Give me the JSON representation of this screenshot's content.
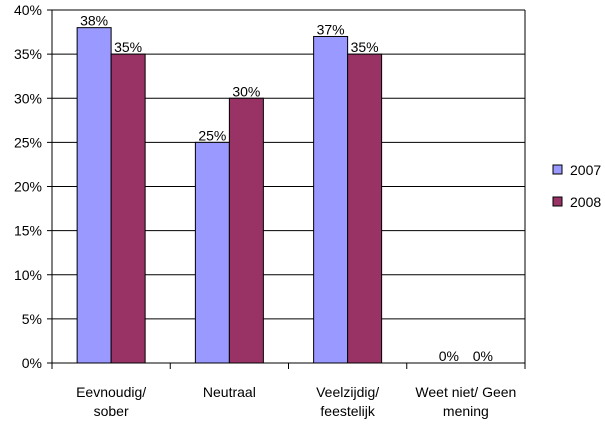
{
  "chart_data": {
    "type": "bar",
    "title": "",
    "xlabel": "",
    "ylabel": "",
    "categories": [
      [
        "Eevnoudig/",
        "sober"
      ],
      [
        "Neutraal"
      ],
      [
        "Veelzijdig/",
        "feestelijk"
      ],
      [
        "Weet niet/ Geen",
        "mening"
      ]
    ],
    "series": [
      {
        "name": "2007",
        "color": "#9999ff",
        "values": [
          38,
          25,
          37,
          0
        ]
      },
      {
        "name": "2008",
        "color": "#993366",
        "values": [
          35,
          30,
          35,
          0
        ]
      }
    ],
    "ylim": [
      0,
      40
    ],
    "yticks": [
      "0%",
      "5%",
      "10%",
      "15%",
      "20%",
      "25%",
      "30%",
      "35%",
      "40%"
    ],
    "tick_step": 5,
    "value_suffix": "%",
    "grid": true,
    "legend": "right"
  }
}
